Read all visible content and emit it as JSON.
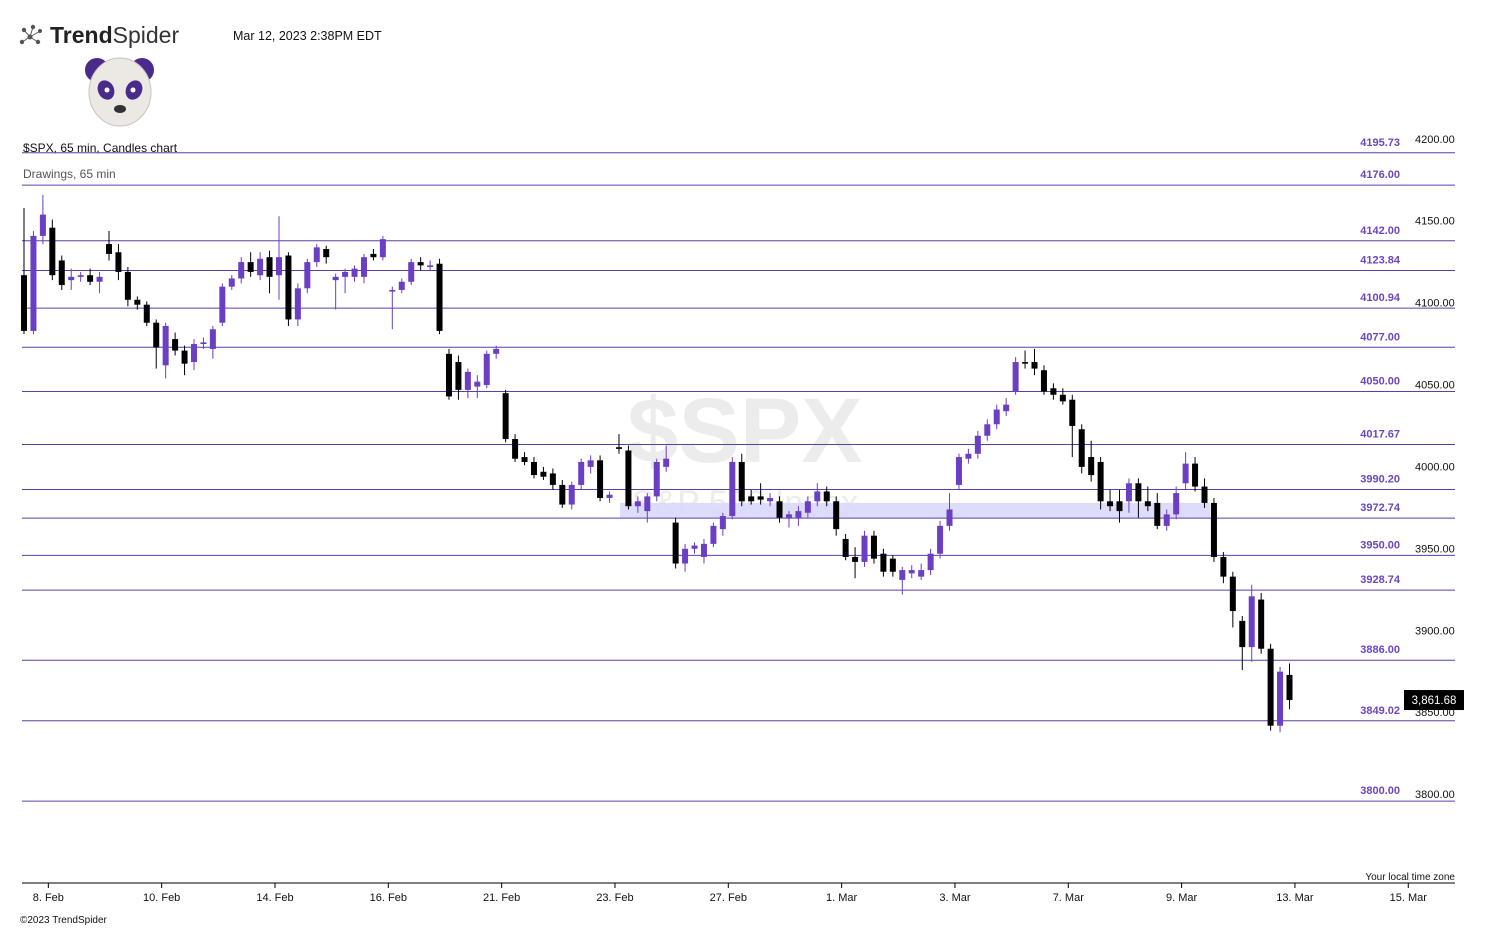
{
  "header": {
    "logo_bold": "Trend",
    "logo_light": "Spider",
    "timestamp": "Mar 12, 2023 2:38PM EDT"
  },
  "chart_data": {
    "type": "candlestick",
    "title": "$SPX, 65 min, Candles chart",
    "subtitle": "Drawings, 65 min",
    "watermark": "$SPX",
    "watermark_subtitle": "S&P 500 Index",
    "timezone_note": "Your local time zone",
    "footer": "©2023 TrendSpider",
    "up_color": "#6a3fc4",
    "down_color": "#000000",
    "level_color": "#5b3fa8",
    "zone_color": "#d9d9fb",
    "ylim": [
      3750,
      4210
    ],
    "yticks": [
      {
        "value": 4200,
        "label": "4200.00"
      },
      {
        "value": 4150,
        "label": "4150.00"
      },
      {
        "value": 4100,
        "label": "4100.00"
      },
      {
        "value": 4050,
        "label": "4050.00"
      },
      {
        "value": 4000,
        "label": "4000.00"
      },
      {
        "value": 3950,
        "label": "3950.00"
      },
      {
        "value": 3900,
        "label": "3900.00"
      },
      {
        "value": 3850,
        "label": "3850.00"
      },
      {
        "value": 3800,
        "label": "3800.00"
      }
    ],
    "levels": [
      {
        "value": 4195.73,
        "label": "4195.73"
      },
      {
        "value": 4176,
        "label": "4176.00"
      },
      {
        "value": 4142,
        "label": "4142.00"
      },
      {
        "value": 4123.84,
        "label": "4123.84"
      },
      {
        "value": 4100.94,
        "label": "4100.94"
      },
      {
        "value": 4077,
        "label": "4077.00"
      },
      {
        "value": 4050,
        "label": "4050.00"
      },
      {
        "value": 4017.67,
        "label": "4017.67"
      },
      {
        "value": 3990.2,
        "label": "3990.20"
      },
      {
        "value": 3972.74,
        "label": "3972.74"
      },
      {
        "value": 3950,
        "label": "3950.00"
      },
      {
        "value": 3928.74,
        "label": "3928.74"
      },
      {
        "value": 3886,
        "label": "3886.00"
      },
      {
        "value": 3849.02,
        "label": "3849.02"
      },
      {
        "value": 3800,
        "label": "3800.00"
      }
    ],
    "zone": {
      "top": 3982,
      "bottom": 3972.74
    },
    "last_price": {
      "value": 3861.68,
      "label": "3,861.68"
    },
    "categories": [
      null,
      null,
      null,
      "8. Feb",
      null,
      null,
      null,
      null,
      null,
      null,
      null,
      null,
      null,
      null,
      null,
      "10. Feb",
      null,
      null,
      null,
      null,
      null,
      null,
      null,
      null,
      null,
      null,
      null,
      "14. Feb",
      null,
      null,
      null,
      null,
      null,
      null,
      null,
      null,
      null,
      null,
      null,
      "16. Feb",
      null,
      null,
      null,
      null,
      null,
      null,
      null,
      null,
      null,
      null,
      null,
      "21. Feb",
      null,
      null,
      null,
      null,
      null,
      null,
      null,
      null,
      null,
      null,
      null,
      "23. Feb",
      null,
      null,
      null,
      null,
      null,
      null,
      null,
      null,
      null,
      null,
      null,
      "27. Feb",
      null,
      null,
      null,
      null,
      null,
      null,
      null,
      null,
      null,
      null,
      null,
      "1. Mar",
      null,
      null,
      null,
      null,
      null,
      null,
      null,
      null,
      null,
      null,
      null,
      "3. Mar",
      null,
      null,
      null,
      null,
      null,
      null,
      null,
      null,
      null,
      null,
      null,
      "7. Mar",
      null,
      null,
      null,
      null,
      null,
      null,
      null,
      null,
      null,
      null,
      null,
      "9. Mar",
      null,
      null,
      null,
      null,
      null,
      null,
      null,
      null,
      null,
      null,
      null,
      "13. Mar",
      null,
      null,
      null,
      null,
      null,
      null,
      null,
      null,
      null,
      null,
      null,
      "15. Mar",
      null,
      null,
      null,
      null,
      null
    ],
    "open": [
      4121,
      4087,
      4145,
      4150,
      4130,
      4118,
      4120,
      4121,
      4117,
      4140,
      4135,
      4123,
      4106,
      4103,
      4092,
      4066,
      4082,
      4075,
      4068,
      4079,
      4076,
      4092,
      4114,
      4119,
      4129,
      4121,
      4132,
      4121,
      4133,
      4094,
      4113,
      4129,
      4137,
      4118,
      4120,
      4120,
      4120,
      4134,
      4132,
      4111,
      4112,
      4117,
      4129,
      4126,
      4128,
      4073,
      4068,
      4051,
      4053,
      4054,
      4073,
      4049,
      4021,
      4010,
      4007,
      4001,
      4000,
      3993,
      3981,
      3993,
      4004,
      4008,
      3985,
      4016,
      4014,
      3980,
      3977,
      3986,
      4004,
      3970,
      3945,
      3954,
      3949,
      3957,
      3966,
      3974,
      4007,
      3986,
      3986,
      3983,
      3983,
      3973,
      3973,
      3976,
      3983,
      3989,
      3983,
      3960,
      3949,
      3946,
      3962,
      3951,
      3948,
      3935,
      3939,
      3937,
      3941,
      3951,
      3968,
      3993,
      4009,
      4012,
      4023,
      4030,
      4038,
      4050,
      4068,
      4068,
      4063,
      4052,
      4048,
      4045,
      4027,
      4010,
      4007,
      3983,
      3983,
      3983,
      3994,
      3983,
      3982,
      3968,
      3975,
      3994,
      4006,
      3992,
      3982,
      3949,
      3937,
      3910,
      3894,
      3923,
      3893,
      3846,
      3877,
      null,
      null,
      null,
      null,
      null,
      null,
      null,
      null,
      null,
      null,
      null,
      null,
      null,
      null,
      null,
      null,
      null,
      null
    ],
    "high": [
      4162,
      4148,
      4170,
      4155,
      4133,
      4125,
      4123,
      4125,
      4123,
      4148,
      4140,
      4126,
      4108,
      4105,
      4094,
      4092,
      4086,
      4078,
      4082,
      4083,
      4090,
      4116,
      4121,
      4132,
      4135,
      4135,
      4136,
      4157,
      4135,
      4116,
      4131,
      4140,
      4139,
      4122,
      4125,
      4127,
      4134,
      4137,
      4145,
      4114,
      4119,
      4131,
      4132,
      4130,
      4131,
      4076,
      4072,
      4064,
      4060,
      4075,
      4078,
      4051,
      4024,
      4013,
      4010,
      4004,
      4003,
      3996,
      3995,
      4009,
      4011,
      4011,
      3989,
      4024,
      4017,
      3986,
      3988,
      4009,
      4017,
      3973,
      3957,
      3958,
      3960,
      3970,
      3976,
      4010,
      4012,
      3990,
      3994,
      3988,
      3986,
      3977,
      3980,
      3986,
      3994,
      3992,
      3986,
      3963,
      3955,
      3965,
      3965,
      3954,
      3950,
      3943,
      3944,
      3945,
      3954,
      3971,
      3988,
      4012,
      4015,
      4026,
      4033,
      4042,
      4046,
      4071,
      4075,
      4076,
      4066,
      4055,
      4052,
      4048,
      4030,
      4020,
      4010,
      3990,
      3990,
      3997,
      3997,
      3992,
      3988,
      3978,
      3992,
      4013,
      4010,
      3997,
      3985,
      3952,
      3940,
      3913,
      3932,
      3927,
      3896,
      3882,
      3884,
      null,
      null,
      null,
      null,
      null,
      null,
      null,
      null,
      null,
      null,
      null,
      null,
      null,
      null,
      null,
      null,
      null,
      null
    ],
    "low": [
      4085,
      4085,
      4140,
      4118,
      4112,
      4112,
      4117,
      4115,
      4110,
      4130,
      4118,
      4102,
      4100,
      4090,
      4064,
      4058,
      4072,
      4060,
      4063,
      4076,
      4070,
      4090,
      4112,
      4116,
      4120,
      4118,
      4110,
      4106,
      4090,
      4090,
      4110,
      4126,
      4128,
      4100,
      4110,
      4117,
      4116,
      4130,
      4130,
      4088,
      4110,
      4115,
      4124,
      4124,
      4085,
      4045,
      4045,
      4046,
      4046,
      4052,
      4070,
      4019,
      4007,
      4005,
      3997,
      3996,
      3990,
      3979,
      3978,
      3990,
      4000,
      3983,
      3982,
      4012,
      3978,
      3976,
      3970,
      3983,
      4001,
      3942,
      3940,
      3951,
      3945,
      3955,
      3962,
      3972,
      3980,
      3981,
      3981,
      3980,
      3970,
      3967,
      3968,
      3973,
      3980,
      3980,
      3962,
      3947,
      3936,
      3943,
      3945,
      3937,
      3937,
      3926,
      3936,
      3935,
      3938,
      3948,
      3965,
      3990,
      4006,
      4009,
      4020,
      4027,
      4035,
      4048,
      4064,
      4060,
      4048,
      4045,
      4042,
      4010,
      4000,
      3995,
      3978,
      3977,
      3970,
      3976,
      3973,
      3977,
      3966,
      3965,
      3972,
      3990,
      3989,
      3979,
      3946,
      3933,
      3906,
      3880,
      3885,
      3890,
      3843,
      3842,
      3856,
      null,
      null,
      null,
      null,
      null,
      null,
      null,
      null,
      null,
      null,
      null,
      null,
      null,
      null,
      null,
      null,
      null,
      null
    ],
    "close": [
      4087,
      4145,
      4158,
      4121,
      4115,
      4120,
      4121,
      4117,
      4120,
      4134,
      4123,
      4106,
      4103,
      4092,
      4077,
      4090,
      4075,
      4067,
      4079,
      4080,
      4088,
      4114,
      4119,
      4129,
      4123,
      4131,
      4120,
      4132,
      4094,
      4113,
      4129,
      4138,
      4132,
      4120,
      4123,
      4125,
      4132,
      4132,
      4143,
      4112,
      4117,
      4129,
      4127,
      4127,
      4087,
      4047,
      4051,
      4062,
      4056,
      4073,
      4076,
      4021,
      4009,
      4007,
      3999,
      3998,
      3993,
      3981,
      3993,
      4007,
      4008,
      3985,
      3987,
      4015,
      3980,
      3983,
      3986,
      4007,
      4009,
      3945,
      3954,
      3956,
      3957,
      3968,
      3974,
      4007,
      3983,
      3983,
      3984,
      3985,
      3973,
      3975,
      3977,
      3983,
      3989,
      3983,
      3966,
      3949,
      3946,
      3962,
      3948,
      3940,
      3940,
      3941,
      3941,
      3941,
      3951,
      3968,
      3978,
      4010,
      4012,
      4023,
      4030,
      4039,
      4042,
      4068,
      4067,
      4064,
      4050,
      4048,
      4044,
      4029,
      4004,
      3999,
      3983,
      3980,
      3977,
      3994,
      3983,
      3980,
      3968,
      3975,
      3988,
      4006,
      3992,
      3982,
      3949,
      3937,
      3916,
      3894,
      3925,
      3893,
      3846,
      3879,
      3861.68,
      null,
      null,
      null,
      null,
      null,
      null,
      null,
      null,
      null,
      null,
      null,
      null,
      null,
      null,
      null,
      null,
      null,
      null
    ]
  }
}
